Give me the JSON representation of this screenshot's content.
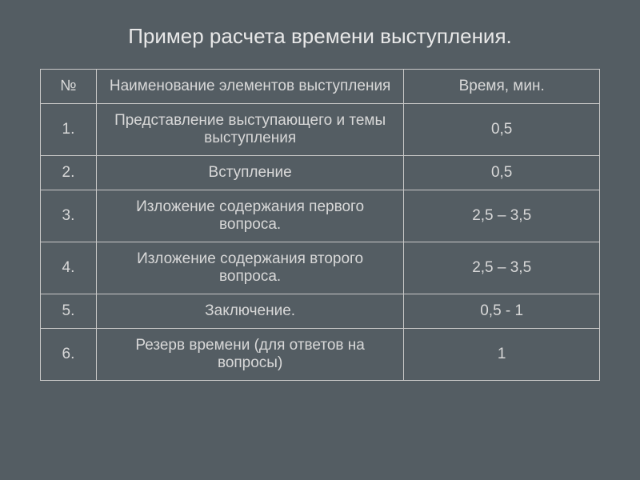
{
  "title": "Пример расчета времени выступления.",
  "table": {
    "columns": [
      "№",
      "Наименование элементов выступления",
      "Время, мин."
    ],
    "rows": [
      [
        "1.",
        "Представление выступающего и темы выступления",
        "0,5"
      ],
      [
        "2.",
        "Вступление",
        "0,5"
      ],
      [
        "3.",
        "Изложение содержания первого вопроса.",
        "2,5 – 3,5"
      ],
      [
        "4.",
        "Изложение содержания второго вопроса.",
        "2,5 – 3,5"
      ],
      [
        "5.",
        "Заключение.",
        "0,5 - 1"
      ],
      [
        "6.",
        "Резерв времени (для ответов на вопросы)",
        "1"
      ]
    ],
    "col_widths": [
      "10%",
      "55%",
      "35%"
    ],
    "border_color": "#c8c8c8",
    "text_color": "#d8d8d8",
    "title_color": "#e8e8e8",
    "background_color": "#545d63",
    "cell_fontsize": 19,
    "title_fontsize": 26
  }
}
